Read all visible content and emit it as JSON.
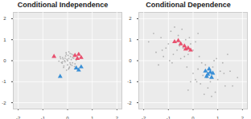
{
  "chart_data": [
    {
      "type": "scatter",
      "title": "Conditional Independence",
      "xlim": [
        -2.2,
        2.2
      ],
      "ylim": [
        -2.3,
        2.3
      ],
      "xticks": [
        -2,
        -1,
        0,
        1,
        2
      ],
      "yticks": [
        -2,
        -1,
        0,
        1,
        2
      ],
      "grid": true,
      "series": [
        {
          "color": "#999999",
          "marker": "circle",
          "x": [
            0.05,
            -0.1,
            0.12,
            -0.2,
            0.2,
            0.0,
            -0.05,
            0.15,
            -0.15,
            0.25,
            -0.25,
            0.08,
            -0.08,
            0.3,
            -0.3,
            0.1,
            -0.12,
            0.18,
            -0.18,
            0.02,
            0.22,
            -0.22,
            0.06,
            -0.02,
            0.35,
            -0.35,
            0.12,
            -0.06,
            0.04,
            0.28,
            -0.28,
            0.16,
            -0.16,
            0.0,
            0.1,
            -0.1,
            0.2,
            -0.2,
            0.05,
            -0.04
          ],
          "y": [
            0.1,
            -0.05,
            0.2,
            0.15,
            -0.1,
            -0.2,
            0.3,
            0.05,
            -0.25,
            0.12,
            -0.08,
            -0.3,
            0.22,
            -0.15,
            0.18,
            0.35,
            0.0,
            -0.22,
            0.08,
            0.25,
            0.28,
            -0.12,
            -0.35,
            0.06,
            0.02,
            -0.02,
            -0.18,
            0.38,
            -0.4,
            -0.28,
            0.1,
            0.32,
            -0.32,
            0.0,
            -0.1,
            0.12,
            0.14,
            -0.05,
            0.42,
            -0.45
          ]
        },
        {
          "color": "#e8506e",
          "marker": "triangle",
          "x": [
            0.3,
            0.45,
            0.55,
            -0.55,
            0.4
          ],
          "y": [
            0.25,
            0.3,
            0.15,
            0.2,
            0.1
          ]
        },
        {
          "color": "#3a8fd6",
          "marker": "triangle",
          "x": [
            -0.3,
            0.35,
            0.45,
            0.55
          ],
          "y": [
            -0.75,
            -0.35,
            -0.45,
            -0.3
          ]
        }
      ]
    },
    {
      "type": "scatter",
      "title": "Conditional Dependence",
      "xlim": [
        -2.2,
        2.2
      ],
      "ylim": [
        -2.3,
        2.3
      ],
      "xticks": [
        -2,
        -1,
        0,
        1,
        2
      ],
      "yticks": [
        -2,
        -1,
        0,
        1,
        2
      ],
      "grid": true,
      "series": [
        {
          "color": "#999999",
          "marker": "circle",
          "x": [
            -1.8,
            -1.5,
            -1.3,
            -1.2,
            -1.0,
            -0.9,
            -0.8,
            -0.7,
            -0.6,
            -0.5,
            -0.4,
            -0.3,
            -0.2,
            -0.1,
            0.0,
            -1.6,
            -1.1,
            -0.95,
            -0.75,
            -0.55,
            -0.35,
            -0.15,
            0.1,
            -1.4,
            -0.65,
            -0.45,
            -0.85,
            -1.25,
            -0.25,
            0.2,
            1.8,
            1.5,
            1.3,
            1.2,
            1.0,
            0.9,
            0.8,
            0.7,
            0.6,
            0.5,
            0.4,
            0.3,
            0.2,
            0.1,
            0.0,
            1.6,
            1.1,
            0.95,
            0.75,
            0.55,
            0.35,
            0.15,
            -0.1,
            1.4,
            0.65,
            0.45,
            0.85,
            1.25,
            0.25,
            -0.2
          ],
          "y": [
            0.9,
            0.4,
            1.1,
            0.2,
            0.8,
            1.4,
            0.3,
            0.9,
            1.2,
            0.1,
            0.6,
            1.0,
            0.3,
            0.8,
            0.5,
            1.3,
            0.6,
            0.0,
            1.6,
            0.7,
            0.2,
            1.1,
            0.9,
            -0.2,
            0.5,
            1.5,
            -0.1,
            0.5,
            -0.3,
            1.3,
            -0.8,
            -0.5,
            -1.2,
            -0.1,
            -0.9,
            -1.5,
            -0.3,
            -1.0,
            -1.3,
            -0.2,
            -0.7,
            -1.1,
            -0.4,
            -0.9,
            -0.6,
            -1.2,
            -0.5,
            0.1,
            -1.7,
            -0.8,
            -0.1,
            -1.0,
            -1.0,
            0.3,
            -0.4,
            -1.6,
            0.0,
            -0.6,
            0.2,
            -1.4
          ]
        },
        {
          "color": "#e8506e",
          "marker": "triangle",
          "x": [
            -0.75,
            -0.6,
            -0.5,
            -0.3,
            -0.2,
            -0.1,
            -0.35
          ],
          "y": [
            0.9,
            0.95,
            0.8,
            0.55,
            0.6,
            0.5,
            0.7
          ]
        },
        {
          "color": "#3a8fd6",
          "marker": "triangle",
          "x": [
            0.5,
            0.6,
            0.7,
            0.8,
            0.55,
            0.65,
            0.75
          ],
          "y": [
            -0.5,
            -0.65,
            -0.55,
            -0.6,
            -0.75,
            -0.4,
            -0.8
          ]
        }
      ]
    }
  ]
}
